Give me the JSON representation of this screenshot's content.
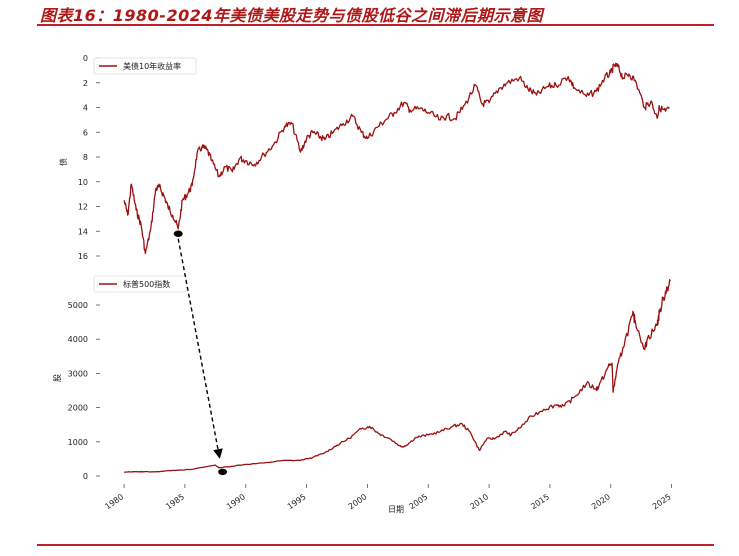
{
  "figure": {
    "title": "图表16：1980-2024年美债美股走势与债股低谷之间滞后期示意图"
  },
  "colors": {
    "series": "#9b1010",
    "rule": "#c0202a",
    "title": "#b01818"
  },
  "chart_data": [
    {
      "type": "line",
      "panel": "top",
      "ylabel": "债",
      "yaxis_inverted": true,
      "ylim": [
        0,
        17
      ],
      "yticks": [
        0,
        2,
        4,
        6,
        8,
        10,
        12,
        14,
        16
      ],
      "legend": {
        "placement": "top-left"
      },
      "grid": false,
      "series": [
        {
          "name": "美债10年收益率",
          "x": [
            1980.0,
            1980.3,
            1980.6,
            1981.0,
            1981.4,
            1981.75,
            1982.2,
            1982.6,
            1982.9,
            1983.3,
            1983.6,
            1984.0,
            1984.45,
            1984.8,
            1985.2,
            1985.6,
            1986.0,
            1986.4,
            1986.8,
            1987.2,
            1987.8,
            1988.3,
            1988.9,
            1989.5,
            1990.0,
            1990.7,
            1991.5,
            1992.3,
            1993.2,
            1993.8,
            1994.5,
            1995.0,
            1995.5,
            1996.0,
            1996.5,
            1997.2,
            1998.0,
            1998.8,
            1999.5,
            2000.0,
            2000.8,
            2001.5,
            2002.2,
            2003.0,
            2003.5,
            2004.3,
            2005.0,
            2006.0,
            2006.5,
            2007.2,
            2008.0,
            2008.9,
            2009.4,
            2010.0,
            2010.8,
            2011.5,
            2012.5,
            2013.2,
            2013.9,
            2014.8,
            2015.5,
            2016.5,
            2017.0,
            2018.0,
            2018.8,
            2019.5,
            2020.0,
            2020.3,
            2020.6,
            2021.0,
            2021.5,
            2022.0,
            2022.8,
            2023.3,
            2023.8,
            2024.0,
            2024.5,
            2024.8
          ],
          "y": [
            11.5,
            12.7,
            10.2,
            12.3,
            13.5,
            15.8,
            13.8,
            10.6,
            10.4,
            11.2,
            12.0,
            12.7,
            13.8,
            11.5,
            11.0,
            10.3,
            7.7,
            7.2,
            7.4,
            8.3,
            9.6,
            8.8,
            9.2,
            8.1,
            8.3,
            8.6,
            7.8,
            7.0,
            5.5,
            5.3,
            7.6,
            6.5,
            6.0,
            6.3,
            6.6,
            6.0,
            5.3,
            4.7,
            6.0,
            6.5,
            5.6,
            5.0,
            4.4,
            3.6,
            4.2,
            4.1,
            4.4,
            5.0,
            4.7,
            4.9,
            3.8,
            2.2,
            3.7,
            3.6,
            2.5,
            2.0,
            1.6,
            2.5,
            3.0,
            2.3,
            2.2,
            1.5,
            2.4,
            3.1,
            2.7,
            1.6,
            1.2,
            0.6,
            0.7,
            1.6,
            1.3,
            1.8,
            4.0,
            3.5,
            4.8,
            4.0,
            4.3,
            4.1
          ]
        }
      ]
    },
    {
      "type": "line",
      "panel": "bottom",
      "xlabel": "日期",
      "ylabel": "股",
      "ylim": [
        -100,
        5900
      ],
      "yticks": [
        0,
        1000,
        2000,
        3000,
        4000,
        5000
      ],
      "xlim": [
        1979.5,
        2025.2
      ],
      "xticks": [
        1980,
        1985,
        1990,
        1995,
        2000,
        2005,
        2010,
        2015,
        2020,
        2025
      ],
      "legend": {
        "placement": "top-left"
      },
      "grid": false,
      "series": [
        {
          "name": "标普500指数",
          "x": [
            1980.0,
            1981.0,
            1982.5,
            1984.0,
            1985.5,
            1987.5,
            1987.8,
            1988.5,
            1990.0,
            1991.5,
            1993.0,
            1994.5,
            1995.5,
            1996.5,
            1997.5,
            1998.5,
            1999.5,
            2000.2,
            2001.0,
            2001.8,
            2002.8,
            2003.2,
            2004.0,
            2005.0,
            2006.0,
            2007.0,
            2007.8,
            2008.5,
            2009.2,
            2009.8,
            2010.5,
            2011.3,
            2011.8,
            2012.5,
            2013.5,
            2014.5,
            2015.5,
            2016.2,
            2017.0,
            2018.0,
            2018.8,
            2019.0,
            2019.8,
            2020.1,
            2020.2,
            2020.5,
            2021.0,
            2021.8,
            2022.0,
            2022.8,
            2023.0,
            2023.8,
            2024.0,
            2024.5,
            2024.9
          ],
          "y": [
            110,
            130,
            120,
            165,
            190,
            320,
            240,
            270,
            340,
            380,
            450,
            460,
            540,
            680,
            900,
            1100,
            1380,
            1450,
            1230,
            1100,
            850,
            900,
            1130,
            1200,
            1300,
            1450,
            1520,
            1250,
            750,
            1080,
            1100,
            1300,
            1200,
            1400,
            1750,
            1950,
            2080,
            2050,
            2300,
            2700,
            2550,
            2600,
            3200,
            3300,
            2450,
            3100,
            3750,
            4700,
            4550,
            3700,
            4000,
            4400,
            4770,
            5400,
            5700
          ]
        }
      ]
    }
  ]
}
